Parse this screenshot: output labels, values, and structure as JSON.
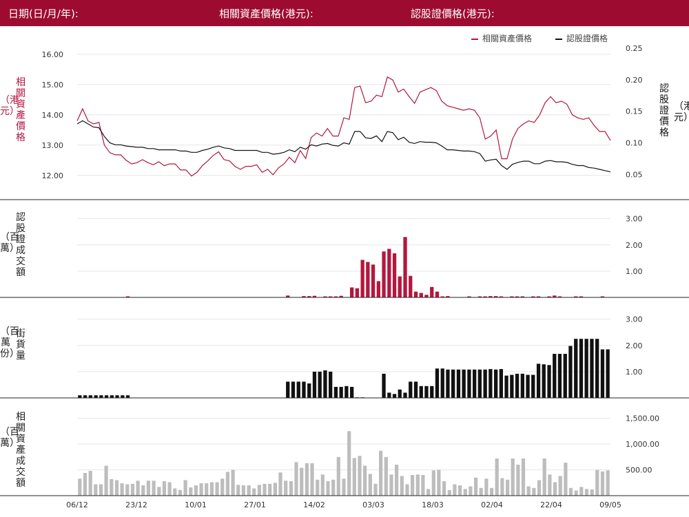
{
  "header": {
    "date_label": "日期(日/月/年):",
    "underlying_label": "相關資產價格(港元):",
    "warrant_label": "認股證價格(港元):"
  },
  "legend": {
    "underlying": "相關資產價格",
    "warrant": "認股證價格"
  },
  "colors": {
    "brand": "#9e0b30",
    "underlying": "#b1163d",
    "warrant": "#111111",
    "turnover_bar": "#b5173e",
    "street_bar": "#111111",
    "stock_turnover_bar": "#bdbdbd"
  },
  "axis_labels": {
    "underlying_price": "相關資產價格",
    "underlying_price_unit": "（港元）",
    "warrant_price": "認股證價格",
    "warrant_price_unit": "（港元）",
    "warrant_turnover": "認股證成交額",
    "warrant_turnover_unit": "（百萬）",
    "street": "街貨量",
    "street_unit": "（百萬份）",
    "stock_turnover": "相關資產成交額",
    "stock_turnover_unit": "（百萬）"
  },
  "chart_data": [
    {
      "type": "line",
      "title": "",
      "x_ticks": [
        "06/12",
        "23/12",
        "10/01",
        "27/01",
        "14/02",
        "03/03",
        "18/03",
        "02/04",
        "22/04",
        "09/05"
      ],
      "left_axis": {
        "ticks": [
          "12.00",
          "13.00",
          "14.00",
          "15.00",
          "16.00"
        ],
        "ylim": [
          11.2,
          16.2
        ]
      },
      "right_axis": {
        "ticks": [
          "0.05",
          "0.10",
          "0.15",
          "0.20",
          "0.25"
        ],
        "ylim": [
          0.01,
          0.25
        ]
      },
      "grid": true,
      "legend_position": "top-right",
      "series": [
        {
          "name": "相關資產價格",
          "axis": "left",
          "values": [
            13.8,
            14.2,
            13.8,
            13.7,
            13.75,
            13.0,
            12.75,
            12.68,
            12.68,
            12.5,
            12.38,
            12.42,
            12.52,
            12.42,
            12.35,
            12.45,
            12.32,
            12.38,
            12.38,
            12.18,
            12.18,
            11.98,
            12.1,
            12.32,
            12.48,
            12.66,
            12.78,
            12.52,
            12.48,
            12.3,
            12.2,
            12.3,
            12.3,
            12.35,
            12.1,
            12.2,
            12.02,
            12.25,
            12.38,
            12.6,
            12.42,
            12.82,
            12.56,
            13.25,
            13.4,
            13.3,
            13.55,
            13.3,
            13.3,
            13.9,
            13.85,
            14.9,
            14.95,
            14.4,
            14.45,
            14.65,
            14.6,
            15.25,
            15.15,
            14.75,
            14.85,
            14.6,
            14.38,
            14.75,
            14.83,
            14.9,
            14.8,
            14.45,
            14.3,
            14.25,
            14.2,
            14.15,
            14.2,
            14.15,
            13.9,
            13.2,
            13.3,
            13.5,
            12.55,
            12.55,
            13.2,
            13.55,
            13.7,
            13.8,
            13.75,
            14.0,
            14.4,
            14.6,
            14.4,
            14.45,
            14.35,
            14.0,
            13.9,
            13.85,
            13.9,
            13.65,
            13.45,
            13.45,
            13.15
          ]
        },
        {
          "name": "認股證價格",
          "axis": "right",
          "values": [
            0.13,
            0.135,
            0.13,
            0.125,
            0.124,
            0.11,
            0.1,
            0.097,
            0.097,
            0.095,
            0.094,
            0.093,
            0.093,
            0.091,
            0.091,
            0.089,
            0.089,
            0.089,
            0.089,
            0.087,
            0.087,
            0.085,
            0.085,
            0.088,
            0.09,
            0.093,
            0.095,
            0.092,
            0.091,
            0.088,
            0.088,
            0.088,
            0.088,
            0.088,
            0.085,
            0.085,
            0.082,
            0.083,
            0.085,
            0.089,
            0.086,
            0.093,
            0.09,
            0.097,
            0.095,
            0.098,
            0.099,
            0.096,
            0.095,
            0.1,
            0.098,
            0.118,
            0.118,
            0.108,
            0.107,
            0.111,
            0.102,
            0.118,
            0.116,
            0.105,
            0.109,
            0.101,
            0.099,
            0.102,
            0.101,
            0.101,
            0.1,
            0.095,
            0.089,
            0.089,
            0.088,
            0.087,
            0.087,
            0.086,
            0.083,
            0.071,
            0.073,
            0.074,
            0.064,
            0.058,
            0.066,
            0.069,
            0.071,
            0.071,
            0.067,
            0.067,
            0.071,
            0.072,
            0.07,
            0.07,
            0.069,
            0.066,
            0.064,
            0.064,
            0.061,
            0.06,
            0.058,
            0.056,
            0.054
          ]
        }
      ]
    },
    {
      "type": "bar",
      "title": "",
      "ylabel": "認股證成交額",
      "y_ticks": [
        "1.00",
        "2.00",
        "3.00"
      ],
      "ylim": [
        0,
        3.2
      ],
      "values": [
        0,
        0,
        0,
        0,
        0,
        0,
        0,
        0,
        0,
        0.04,
        0,
        0,
        0,
        0,
        0,
        0,
        0,
        0,
        0,
        0,
        0,
        0,
        0,
        0,
        0,
        0,
        0,
        0,
        0,
        0,
        0,
        0,
        0,
        0,
        0,
        0,
        0,
        0,
        0,
        0.07,
        0,
        0,
        0.05,
        0.05,
        0.06,
        0,
        0.04,
        0.04,
        0.04,
        0.06,
        0,
        0.38,
        0.35,
        1.43,
        1.35,
        1.25,
        0.62,
        1.75,
        1.85,
        1.68,
        0.8,
        2.3,
        0.82,
        0.22,
        0.17,
        0.1,
        0.4,
        0.22,
        0.04,
        0.05,
        0,
        0,
        0,
        0.04,
        0,
        0.04,
        0.04,
        0.05,
        0.05,
        0.04,
        0,
        0.04,
        0.04,
        0.04,
        0,
        0.04,
        0.04,
        0,
        0.04,
        0.07,
        0.04,
        0,
        0,
        0.04,
        0.04,
        0,
        0,
        0,
        0.04,
        0
      ],
      "legend": "none"
    },
    {
      "type": "bar",
      "title": "",
      "ylabel": "街貨量",
      "y_ticks": [
        "1.00",
        "2.00",
        "3.00"
      ],
      "ylim": [
        0,
        3.2
      ],
      "values": [
        0.1,
        0.1,
        0.1,
        0.1,
        0.1,
        0.1,
        0.1,
        0.1,
        0.1,
        0.1,
        0,
        0,
        0,
        0,
        0,
        0,
        0,
        0,
        0,
        0,
        0,
        0,
        0,
        0,
        0,
        0,
        0,
        0,
        0,
        0,
        0,
        0,
        0,
        0,
        0,
        0,
        0,
        0,
        0,
        0.62,
        0.62,
        0.62,
        0.62,
        0.55,
        1.0,
        1.0,
        1.05,
        1.0,
        0.42,
        0.42,
        0.45,
        0.42,
        0.02,
        0.02,
        0,
        0,
        0,
        0.92,
        0.2,
        0.15,
        0.32,
        0.2,
        0.62,
        0.62,
        0.45,
        0.45,
        0.45,
        1.12,
        1.12,
        1.08,
        1.08,
        1.08,
        1.08,
        1.08,
        1.08,
        1.08,
        1.08,
        1.1,
        1.08,
        1.1,
        0.85,
        0.88,
        0.92,
        0.92,
        0.88,
        0.88,
        1.3,
        1.28,
        1.25,
        1.68,
        1.68,
        1.68,
        1.98,
        2.25,
        2.25,
        2.25,
        2.25,
        2.25,
        1.85,
        1.85
      ],
      "legend": "none"
    },
    {
      "type": "bar",
      "title": "",
      "ylabel": "相關資產成交額",
      "y_ticks": [
        "500.00",
        "1,000.00",
        "1,500.00"
      ],
      "ylim": [
        0,
        1600
      ],
      "values": [
        330,
        440,
        480,
        220,
        220,
        580,
        320,
        300,
        240,
        220,
        230,
        290,
        200,
        290,
        290,
        170,
        280,
        260,
        140,
        110,
        300,
        160,
        200,
        240,
        240,
        260,
        260,
        330,
        460,
        500,
        210,
        200,
        200,
        140,
        210,
        230,
        230,
        250,
        450,
        290,
        280,
        650,
        540,
        630,
        630,
        310,
        410,
        280,
        310,
        750,
        330,
        1250,
        730,
        770,
        580,
        420,
        230,
        870,
        750,
        410,
        600,
        380,
        220,
        400,
        410,
        400,
        130,
        490,
        500,
        280,
        110,
        220,
        200,
        130,
        180,
        350,
        150,
        330,
        150,
        720,
        340,
        310,
        720,
        600,
        720,
        180,
        150,
        300,
        720,
        410,
        260,
        380,
        640,
        150,
        100,
        170,
        130,
        120,
        500,
        470,
        490
      ]
    }
  ]
}
